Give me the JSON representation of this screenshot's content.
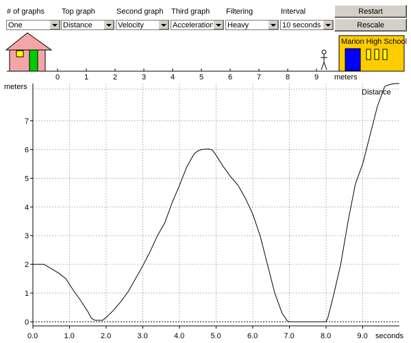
{
  "controls": {
    "num_graphs": {
      "label": "# of graphs",
      "value": "One"
    },
    "top_graph": {
      "label": "Top graph",
      "value": "Distance"
    },
    "second_graph": {
      "label": "Second graph",
      "value": "Velocity"
    },
    "third_graph": {
      "label": "Third graph",
      "value": "Acceleration"
    },
    "filtering": {
      "label": "Filtering",
      "value": "Heavy"
    },
    "interval": {
      "label": "Interval",
      "value": "10 seconds"
    },
    "restart_label": "Restart",
    "rescale_label": "Rescale"
  },
  "scene": {
    "school_name": "Marion High School",
    "track_ticks": [
      "0",
      "1",
      "2",
      "3",
      "4",
      "5",
      "6",
      "7",
      "8",
      "9"
    ],
    "track_unit": "meters",
    "colors": {
      "house_wall": "#f4a6a6",
      "school_wall": "#ffcc00",
      "door_green": "#00cc00",
      "door_blue": "#0000ff",
      "window_yellow": "#ffff00"
    }
  },
  "chart_data": {
    "type": "line",
    "series": [
      {
        "name": "Distance",
        "x": [
          0.0,
          0.3,
          0.5,
          0.7,
          0.9,
          1.1,
          1.3,
          1.5,
          1.6,
          1.7,
          1.8,
          1.9,
          2.0,
          2.2,
          2.4,
          2.6,
          2.8,
          3.0,
          3.2,
          3.4,
          3.6,
          3.8,
          4.0,
          4.2,
          4.4,
          4.5,
          4.6,
          4.8,
          4.9,
          5.0,
          5.2,
          5.4,
          5.6,
          5.8,
          6.0,
          6.2,
          6.4,
          6.6,
          6.8,
          6.95,
          7.0,
          7.5,
          8.0,
          8.05,
          8.2,
          8.4,
          8.6,
          8.8,
          9.0,
          9.2,
          9.4,
          9.6,
          9.7,
          9.8,
          9.9,
          10.0
        ],
        "y": [
          2.0,
          2.0,
          1.85,
          1.7,
          1.5,
          1.1,
          0.75,
          0.35,
          0.12,
          0.05,
          0.05,
          0.05,
          0.15,
          0.4,
          0.7,
          1.05,
          1.5,
          1.95,
          2.45,
          3.0,
          3.45,
          4.15,
          4.75,
          5.4,
          5.85,
          5.95,
          6.0,
          6.02,
          5.98,
          5.8,
          5.4,
          5.05,
          4.75,
          4.3,
          3.75,
          3.0,
          2.0,
          1.0,
          0.3,
          0.02,
          0.0,
          0.0,
          0.0,
          0.15,
          0.9,
          2.0,
          3.5,
          4.8,
          5.5,
          6.5,
          7.5,
          8.2,
          8.25,
          8.28,
          8.3,
          8.3
        ]
      }
    ],
    "xlabel": "seconds",
    "ylabel": "meters",
    "xticks": [
      "0.0",
      "1.0",
      "2.0",
      "3.0",
      "4.0",
      "5.0",
      "6.0",
      "7.0",
      "8.0",
      "9.0"
    ],
    "yticks": [
      "0",
      "1",
      "2",
      "3",
      "4",
      "5",
      "6",
      "7"
    ],
    "xlim": [
      0,
      10
    ],
    "ylim": [
      0,
      8.3
    ],
    "grid": true,
    "legend": "top-right"
  }
}
